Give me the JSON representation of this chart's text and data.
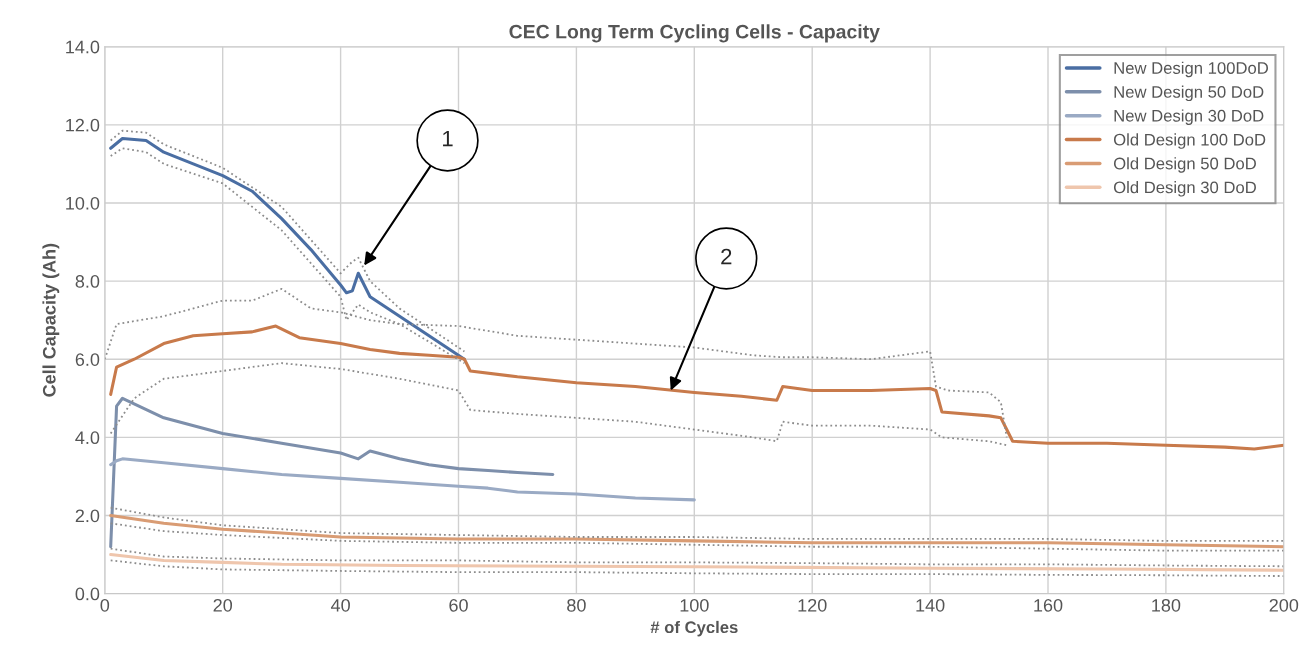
{
  "chart_data": {
    "type": "line",
    "title": "CEC Long Term Cycling Cells - Capacity",
    "xlabel": "# of Cycles",
    "ylabel": "Cell Capacity (Ah)",
    "xlim": [
      0,
      200
    ],
    "xticks": [
      0,
      20,
      40,
      60,
      80,
      100,
      120,
      140,
      160,
      180,
      200
    ],
    "ylim": [
      0,
      14
    ],
    "yticks": [
      {
        "value": 0,
        "label": "0.0"
      },
      {
        "value": 2,
        "label": "2.0"
      },
      {
        "value": 4,
        "label": "4.0"
      },
      {
        "value": 6,
        "label": "6.0"
      },
      {
        "value": 8,
        "label": "8.0"
      },
      {
        "value": 10,
        "label": "10.0"
      },
      {
        "value": 12,
        "label": "12.0"
      },
      {
        "value": 14,
        "label": "14.0"
      }
    ],
    "grid": true,
    "legend": "top right",
    "line_style": "solid",
    "marker": "none",
    "annotations": [
      {
        "text": "1",
        "x": 44,
        "y": 8.4
      },
      {
        "text": "2",
        "x": 96,
        "y": 5.2
      }
    ],
    "series": [
      {
        "name": "New Design 100DoD",
        "color": "#4a6ea3",
        "x": [
          1,
          3,
          7,
          10,
          15,
          20,
          25,
          30,
          35,
          40,
          41,
          42,
          43,
          45,
          50,
          55,
          61
        ],
        "values": [
          11.4,
          11.65,
          11.6,
          11.3,
          11.0,
          10.7,
          10.3,
          9.6,
          8.8,
          7.9,
          7.7,
          7.75,
          8.2,
          7.6,
          7.1,
          6.6,
          6.0
        ]
      },
      {
        "name": "New Design 50 DoD",
        "color": "#7d8fab",
        "x": [
          1,
          2,
          3,
          10,
          20,
          30,
          40,
          43,
          45,
          50,
          55,
          60,
          65,
          70,
          76
        ],
        "values": [
          1.2,
          4.8,
          5.0,
          4.5,
          4.1,
          3.85,
          3.6,
          3.45,
          3.65,
          3.45,
          3.3,
          3.2,
          3.15,
          3.1,
          3.05
        ]
      },
      {
        "name": "New Design 30 DoD",
        "color": "#9aaac4",
        "x": [
          1,
          2,
          3,
          10,
          20,
          30,
          40,
          50,
          60,
          65,
          70,
          80,
          90,
          100
        ],
        "values": [
          3.3,
          3.4,
          3.45,
          3.35,
          3.2,
          3.05,
          2.95,
          2.85,
          2.75,
          2.7,
          2.6,
          2.55,
          2.45,
          2.4
        ]
      },
      {
        "name": "Old Design 100 DoD",
        "color": "#c87a4b",
        "x": [
          1,
          2,
          5,
          10,
          15,
          20,
          25,
          29,
          33,
          40,
          45,
          50,
          55,
          60,
          61,
          62,
          70,
          80,
          90,
          100,
          108,
          114,
          115,
          120,
          130,
          140,
          141,
          142,
          150,
          152,
          153,
          154,
          160,
          170,
          180,
          190,
          195,
          200
        ],
        "values": [
          5.1,
          5.8,
          6.0,
          6.4,
          6.6,
          6.65,
          6.7,
          6.85,
          6.55,
          6.4,
          6.25,
          6.15,
          6.1,
          6.05,
          6.0,
          5.7,
          5.55,
          5.4,
          5.3,
          5.15,
          5.05,
          4.95,
          5.3,
          5.2,
          5.2,
          5.25,
          5.2,
          4.65,
          4.55,
          4.5,
          4.2,
          3.9,
          3.85,
          3.85,
          3.8,
          3.75,
          3.7,
          3.8
        ]
      },
      {
        "name": "Old Design 50 DoD",
        "color": "#d99c74",
        "x": [
          1,
          10,
          20,
          30,
          40,
          60,
          80,
          100,
          120,
          140,
          160,
          180,
          200
        ],
        "values": [
          2.0,
          1.8,
          1.65,
          1.55,
          1.45,
          1.4,
          1.4,
          1.35,
          1.3,
          1.3,
          1.3,
          1.25,
          1.2
        ]
      },
      {
        "name": "Old Design 30 DoD",
        "color": "#efc6ad",
        "x": [
          1,
          10,
          20,
          30,
          50,
          80,
          110,
          140,
          170,
          200
        ],
        "values": [
          1.0,
          0.85,
          0.8,
          0.75,
          0.72,
          0.7,
          0.68,
          0.65,
          0.63,
          0.6
        ]
      },
      {
        "color": "#8c8c8c",
        "line_style": "dotted",
        "x": [
          1,
          3,
          7,
          10,
          20,
          30,
          40,
          42,
          43,
          45,
          50,
          61
        ],
        "values": [
          11.6,
          11.85,
          11.8,
          11.5,
          10.9,
          9.9,
          8.2,
          8.5,
          8.6,
          8.0,
          7.3,
          6.2
        ]
      },
      {
        "color": "#8c8c8c",
        "line_style": "dotted",
        "x": [
          1,
          3,
          7,
          10,
          20,
          30,
          40,
          41,
          43,
          45,
          50,
          61
        ],
        "values": [
          11.2,
          11.4,
          11.3,
          11.0,
          10.5,
          9.3,
          7.6,
          7.0,
          7.4,
          7.2,
          6.9,
          5.9
        ]
      },
      {
        "color": "#8c8c8c",
        "line_style": "dotted",
        "x": [
          0,
          2,
          10,
          20,
          25,
          30,
          35,
          40,
          45,
          50,
          60,
          70,
          80,
          90,
          100,
          110,
          115,
          120,
          130,
          140,
          141,
          143,
          150,
          152,
          153
        ],
        "values": [
          6.0,
          6.9,
          7.1,
          7.5,
          7.5,
          7.8,
          7.3,
          7.2,
          7.0,
          6.9,
          6.85,
          6.6,
          6.5,
          6.4,
          6.3,
          6.1,
          6.05,
          6.05,
          6.0,
          6.2,
          5.3,
          5.2,
          5.15,
          4.9,
          4.0
        ]
      },
      {
        "color": "#8c8c8c",
        "line_style": "dotted",
        "x": [
          1,
          5,
          10,
          20,
          30,
          40,
          50,
          60,
          62,
          70,
          80,
          90,
          100,
          110,
          114,
          115,
          120,
          130,
          140,
          142,
          150,
          153
        ],
        "values": [
          4.1,
          5.0,
          5.5,
          5.7,
          5.9,
          5.75,
          5.5,
          5.2,
          4.7,
          4.6,
          4.5,
          4.4,
          4.2,
          4.0,
          3.9,
          4.4,
          4.3,
          4.3,
          4.2,
          4.0,
          3.9,
          3.8
        ]
      },
      {
        "color": "#8c8c8c",
        "line_style": "dotted",
        "x": [
          1,
          10,
          20,
          40,
          60,
          80,
          100,
          120,
          140,
          160,
          180,
          200
        ],
        "values": [
          2.2,
          1.95,
          1.75,
          1.55,
          1.5,
          1.45,
          1.45,
          1.4,
          1.4,
          1.4,
          1.35,
          1.35
        ]
      },
      {
        "color": "#8c8c8c",
        "line_style": "dotted",
        "x": [
          1,
          10,
          20,
          40,
          60,
          80,
          100,
          120,
          140,
          160,
          180,
          200
        ],
        "values": [
          1.8,
          1.6,
          1.5,
          1.35,
          1.3,
          1.3,
          1.25,
          1.2,
          1.2,
          1.15,
          1.1,
          1.1
        ]
      },
      {
        "color": "#8c8c8c",
        "line_style": "dotted",
        "x": [
          1,
          10,
          20,
          40,
          60,
          80,
          100,
          120,
          140,
          160,
          180,
          200
        ],
        "values": [
          1.15,
          0.95,
          0.9,
          0.85,
          0.85,
          0.8,
          0.8,
          0.78,
          0.75,
          0.75,
          0.72,
          0.7
        ]
      },
      {
        "color": "#8c8c8c",
        "line_style": "dotted",
        "x": [
          1,
          10,
          20,
          40,
          60,
          80,
          100,
          120,
          140,
          160,
          180,
          200
        ],
        "values": [
          0.85,
          0.7,
          0.62,
          0.58,
          0.55,
          0.55,
          0.52,
          0.5,
          0.5,
          0.48,
          0.47,
          0.45
        ]
      }
    ]
  }
}
